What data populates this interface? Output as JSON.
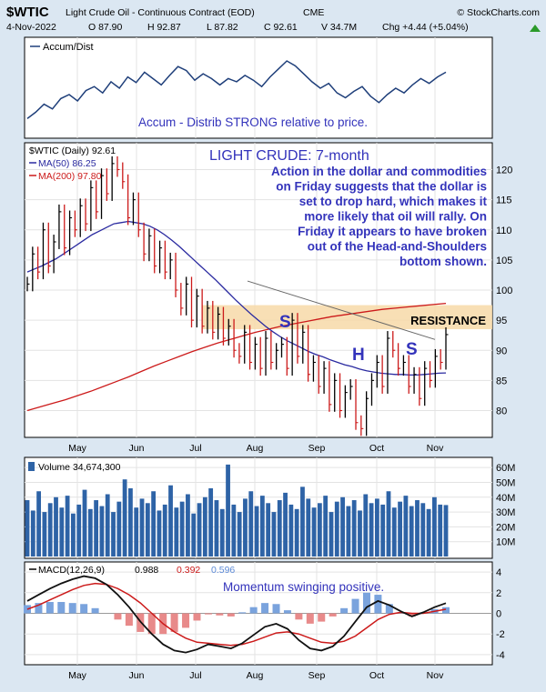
{
  "header": {
    "symbol": "$WTIC",
    "title": "Light Crude Oil - Continuous Contract (EOD)",
    "exchange": "CME",
    "source": "© StockCharts.com",
    "date": "4-Nov-2022",
    "open": "O 87.90",
    "high": "H 92.87",
    "low": "L 87.82",
    "close": "C 92.61",
    "volume": "V 34.7M",
    "change": "Chg +4.44 (+5.04%)"
  },
  "colors": {
    "background": "#dbe7f2",
    "panel": "#ffffff",
    "border": "#000000",
    "up_bar": "#000000",
    "down_bar": "#cc1a1a",
    "ma50": "#2a2aa0",
    "ma200": "#cc1a1a",
    "annotation_text": "#3333bb",
    "resistance_zone": "#f7d9a8",
    "volume_bar": "#2e63a6",
    "macd_hist_pos": "#7aa3dd",
    "macd_hist_neg": "#e88a8a",
    "accum_line": "#1f3f7a"
  },
  "panels": {
    "accum": {
      "label": "Accum/Dist",
      "annotation": "Accum - Distrib STRONG relative to price."
    },
    "price": {
      "legend_symbol": "$WTIC (Daily) 92.61",
      "legend_ma50": "MA(50) 86.25",
      "legend_ma200": "MA(200) 97.80",
      "title_annotation": "LIGHT CRUDE: 7-month",
      "commentary": [
        "Action in the dollar and commodities",
        "on Friday suggests that the dollar is",
        "set to drop hard, which makes it",
        "more likely that oil will rally. On",
        "Friday it appears to have broken",
        "out of the Head-and-Shoulders",
        "bottom shown."
      ],
      "resistance_label": "RESISTANCE",
      "pattern_labels": {
        "left_shoulder": "S",
        "head": "H",
        "right_shoulder": "S"
      },
      "y_ticks": [
        "120",
        "115",
        "110",
        "105",
        "100",
        "95",
        "90",
        "85",
        "80"
      ]
    },
    "volume": {
      "label": "Volume 34,674,300",
      "y_ticks": [
        "60M",
        "50M",
        "40M",
        "30M",
        "20M",
        "10M"
      ]
    },
    "macd": {
      "label": "MACD(12,26,9)",
      "v1": "0.988",
      "v2": "0.392",
      "v3": "0.596",
      "annotation": "Momentum swinging positive.",
      "y_ticks": [
        "4",
        "2",
        "0",
        "-2",
        "-4"
      ]
    }
  },
  "x_axis": {
    "months": [
      "May",
      "Jun",
      "Jul",
      "Aug",
      "Sep",
      "Oct",
      "Nov"
    ]
  },
  "chart_data": {
    "type": "line",
    "instrument": "$WTIC",
    "x_months": [
      "May",
      "Jun",
      "Jul",
      "Aug",
      "Sep",
      "Oct",
      "Nov"
    ],
    "price": {
      "y_range": [
        76,
        124
      ],
      "close": [
        101,
        106,
        103,
        110,
        104,
        108,
        113,
        107,
        112,
        110,
        114,
        111,
        117,
        113,
        119,
        116,
        121,
        120,
        118,
        112,
        115,
        110,
        106,
        109,
        104,
        107,
        103,
        105,
        100,
        97,
        101,
        95,
        99,
        94,
        97,
        93,
        96,
        92,
        94,
        90,
        89,
        93,
        88,
        91,
        87,
        92,
        88,
        90,
        91,
        87,
        95,
        89,
        93,
        86,
        88,
        84,
        87,
        81,
        85,
        80,
        83,
        84,
        78,
        77,
        82,
        85,
        88,
        84,
        92,
        90,
        87,
        88,
        84,
        86,
        82,
        87,
        85,
        89,
        88,
        92.61
      ],
      "ma50": [
        103,
        103.5,
        104,
        104.6,
        105.2,
        106,
        106.8,
        107.6,
        108.4,
        109.2,
        109.8,
        110.4,
        111,
        111.2,
        111.4,
        111.2,
        111,
        110.6,
        110,
        109.2,
        108.3,
        107.3,
        106.2,
        105.1,
        104,
        102.9,
        101.8,
        100.6,
        99.4,
        98.2,
        97.1,
        96,
        95,
        94,
        93.1,
        92.3,
        91.6,
        91,
        90.4,
        89.8,
        89.3,
        88.9,
        88.4,
        88,
        87.6,
        87.3,
        86.9,
        86.6,
        86.4,
        86.2,
        86.1,
        86,
        86,
        85.9,
        85.9,
        86,
        86.1,
        86.2,
        86.25
      ],
      "ma200": [
        80,
        80.6,
        81.2,
        81.8,
        82.5,
        83.2,
        84,
        84.8,
        85.6,
        86.5,
        87.4,
        88.2,
        89,
        89.8,
        90.5,
        91.2,
        91.8,
        92.4,
        93,
        93.5,
        94,
        94.4,
        94.8,
        95.2,
        95.6,
        95.9,
        96.2,
        96.5,
        96.8,
        97,
        97.2,
        97.4,
        97.6,
        97.8
      ],
      "resistance_zone": [
        93.5,
        97.5
      ],
      "neckline": [
        [
          0,
          101.5
        ],
        [
          1,
          91.8
        ]
      ]
    },
    "volume": {
      "y_range": [
        0,
        65
      ],
      "values": [
        38,
        31,
        44,
        30,
        36,
        40,
        33,
        41,
        29,
        35,
        45,
        32,
        38,
        34,
        42,
        30,
        37,
        52,
        46,
        33,
        39,
        36,
        44,
        31,
        35,
        48,
        33,
        37,
        42,
        29,
        36,
        40,
        46,
        38,
        32,
        62,
        35,
        30,
        39,
        44,
        34,
        41,
        36,
        30,
        38,
        43,
        35,
        32,
        47,
        39,
        33,
        36,
        41,
        30,
        37,
        40,
        34,
        38,
        31,
        42,
        36,
        39,
        35,
        44,
        33,
        37,
        41,
        34,
        38,
        36,
        32,
        40,
        35,
        34.7
      ]
    },
    "macd": {
      "y_range": [
        -4.8,
        4.8
      ],
      "macd": [
        1.2,
        1.8,
        2.4,
        2.9,
        3.3,
        3.6,
        3.4,
        2.8,
        1.8,
        0.6,
        -0.8,
        -2.0,
        -3.0,
        -3.6,
        -3.8,
        -3.5,
        -3.0,
        -3.2,
        -3.4,
        -2.9,
        -2.1,
        -1.3,
        -1.0,
        -1.5,
        -2.6,
        -3.4,
        -3.6,
        -3.2,
        -2.2,
        -0.8,
        0.6,
        1.2,
        0.8,
        0.2,
        -0.3,
        0.1,
        0.6,
        0.988
      ],
      "signal": [
        0.4,
        0.8,
        1.3,
        1.8,
        2.3,
        2.7,
        2.9,
        2.8,
        2.4,
        1.8,
        1.0,
        0.0,
        -1.0,
        -1.8,
        -2.4,
        -2.8,
        -2.9,
        -3.0,
        -3.1,
        -3.0,
        -2.7,
        -2.3,
        -1.9,
        -1.8,
        -2.0,
        -2.4,
        -2.8,
        -2.9,
        -2.7,
        -2.2,
        -1.4,
        -0.6,
        -0.1,
        0.1,
        0.0,
        0.0,
        0.2,
        0.392
      ],
      "histogram": [
        0.8,
        1.0,
        1.1,
        1.1,
        1.0,
        0.9,
        0.5,
        0.0,
        -0.6,
        -1.2,
        -1.8,
        -2.0,
        -2.0,
        -1.8,
        -1.4,
        -0.7,
        -0.1,
        -0.2,
        -0.3,
        0.1,
        0.6,
        1.0,
        0.9,
        0.3,
        -0.6,
        -1.0,
        -0.8,
        -0.3,
        0.5,
        1.4,
        2.0,
        1.8,
        0.9,
        0.1,
        -0.3,
        0.1,
        0.4,
        0.596
      ]
    },
    "accum_dist": [
      0.2,
      0.28,
      0.38,
      0.32,
      0.45,
      0.5,
      0.42,
      0.55,
      0.6,
      0.52,
      0.66,
      0.58,
      0.72,
      0.65,
      0.78,
      0.7,
      0.62,
      0.74,
      0.85,
      0.8,
      0.68,
      0.76,
      0.7,
      0.62,
      0.7,
      0.66,
      0.74,
      0.68,
      0.6,
      0.72,
      0.82,
      0.92,
      0.86,
      0.76,
      0.66,
      0.58,
      0.64,
      0.52,
      0.46,
      0.54,
      0.6,
      0.48,
      0.4,
      0.5,
      0.58,
      0.52,
      0.62,
      0.7,
      0.64,
      0.72,
      0.78
    ]
  }
}
